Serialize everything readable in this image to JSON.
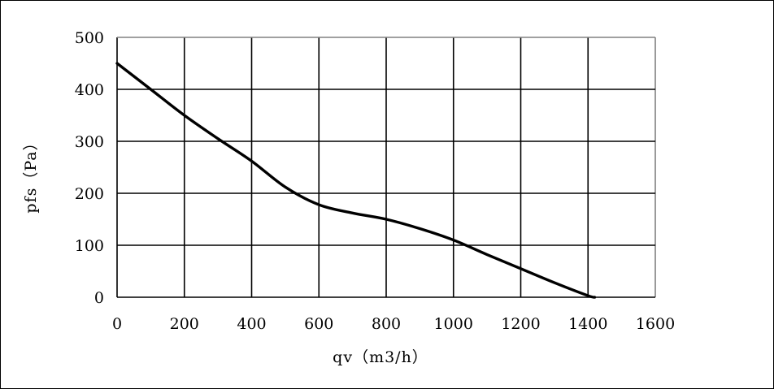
{
  "chart_data": {
    "type": "line",
    "title": "",
    "xlabel": "qv（m3/h）",
    "ylabel": "pfs（Pa）",
    "xlim": [
      0,
      1600
    ],
    "ylim": [
      0,
      500
    ],
    "x_ticks": [
      "0",
      "200",
      "400",
      "600",
      "800",
      "1000",
      "1200",
      "1400",
      "1600"
    ],
    "y_ticks": [
      "0",
      "100",
      "200",
      "300",
      "400",
      "500"
    ],
    "grid": true,
    "legend": "none",
    "series": [
      {
        "x": [
          0,
          100,
          200,
          300,
          400,
          500,
          600,
          700,
          800,
          900,
          1000,
          1100,
          1200,
          1300,
          1400,
          1420
        ],
        "y": [
          450,
          400,
          350,
          305,
          262,
          212,
          178,
          162,
          150,
          132,
          110,
          82,
          55,
          28,
          3,
          0
        ],
        "color": "#000000"
      }
    ]
  }
}
